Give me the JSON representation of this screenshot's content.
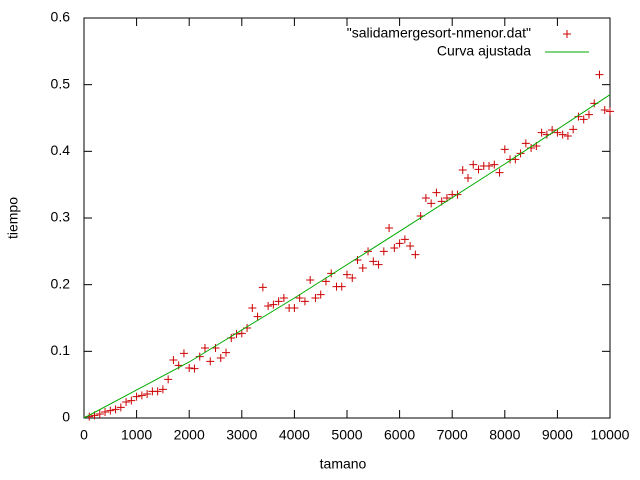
{
  "chart_data": {
    "type": "scatter",
    "xlabel": "tamano",
    "ylabel": "tiempo",
    "xlim": [
      0,
      10000
    ],
    "ylim": [
      0,
      0.6
    ],
    "xticks": [
      0,
      1000,
      2000,
      3000,
      4000,
      5000,
      6000,
      7000,
      8000,
      9000,
      10000
    ],
    "yticks": [
      0,
      0.1,
      0.2,
      0.3,
      0.4,
      0.5,
      0.6
    ],
    "legend": "top-right",
    "grid": false,
    "series": [
      {
        "name": "\"salidamergesort-nmenor.dat\"",
        "color": "#cc0000",
        "style": "points",
        "x": [
          100,
          200,
          300,
          400,
          500,
          600,
          700,
          800,
          900,
          1000,
          1100,
          1200,
          1300,
          1400,
          1500,
          1600,
          1700,
          1800,
          1900,
          2000,
          2100,
          2200,
          2300,
          2400,
          2500,
          2600,
          2700,
          2800,
          2900,
          3000,
          3100,
          3200,
          3300,
          3400,
          3500,
          3600,
          3700,
          3800,
          3900,
          4000,
          4100,
          4200,
          4300,
          4400,
          4500,
          4600,
          4700,
          4800,
          4900,
          5000,
          5100,
          5200,
          5300,
          5400,
          5500,
          5600,
          5700,
          5800,
          5900,
          6000,
          6100,
          6200,
          6300,
          6400,
          6500,
          6600,
          6700,
          6800,
          6900,
          7000,
          7100,
          7200,
          7300,
          7400,
          7500,
          7600,
          7700,
          7800,
          7900,
          8000,
          8100,
          8200,
          8300,
          8400,
          8500,
          8600,
          8700,
          8800,
          8900,
          9000,
          9100,
          9200,
          9300,
          9400,
          9500,
          9600,
          9700,
          9800,
          9900,
          10000
        ],
        "values": [
          0.002,
          0.004,
          0.006,
          0.009,
          0.011,
          0.013,
          0.016,
          0.024,
          0.026,
          0.032,
          0.034,
          0.036,
          0.04,
          0.04,
          0.043,
          0.058,
          0.087,
          0.079,
          0.097,
          0.075,
          0.074,
          0.092,
          0.105,
          0.085,
          0.105,
          0.09,
          0.098,
          0.12,
          0.126,
          0.127,
          0.135,
          0.165,
          0.152,
          0.196,
          0.168,
          0.17,
          0.175,
          0.18,
          0.165,
          0.165,
          0.18,
          0.175,
          0.207,
          0.18,
          0.185,
          0.205,
          0.217,
          0.197,
          0.197,
          0.215,
          0.21,
          0.237,
          0.225,
          0.25,
          0.235,
          0.23,
          0.25,
          0.285,
          0.255,
          0.262,
          0.268,
          0.258,
          0.245,
          0.303,
          0.33,
          0.322,
          0.338,
          0.325,
          0.33,
          0.335,
          0.335,
          0.372,
          0.36,
          0.38,
          0.373,
          0.378,
          0.378,
          0.38,
          0.368,
          0.403,
          0.388,
          0.388,
          0.397,
          0.412,
          0.405,
          0.408,
          0.428,
          0.425,
          0.432,
          0.428,
          0.425,
          0.423,
          0.433,
          0.452,
          0.448,
          0.455,
          0.472,
          0.515,
          0.462,
          0.46
        ]
      },
      {
        "name": "Curva ajustada",
        "color": "#00aa00",
        "style": "line",
        "x": [
          0,
          2000,
          4000,
          6000,
          8000,
          10000
        ],
        "values": [
          0,
          0.084,
          0.18,
          0.28,
          0.381,
          0.485
        ]
      }
    ]
  }
}
